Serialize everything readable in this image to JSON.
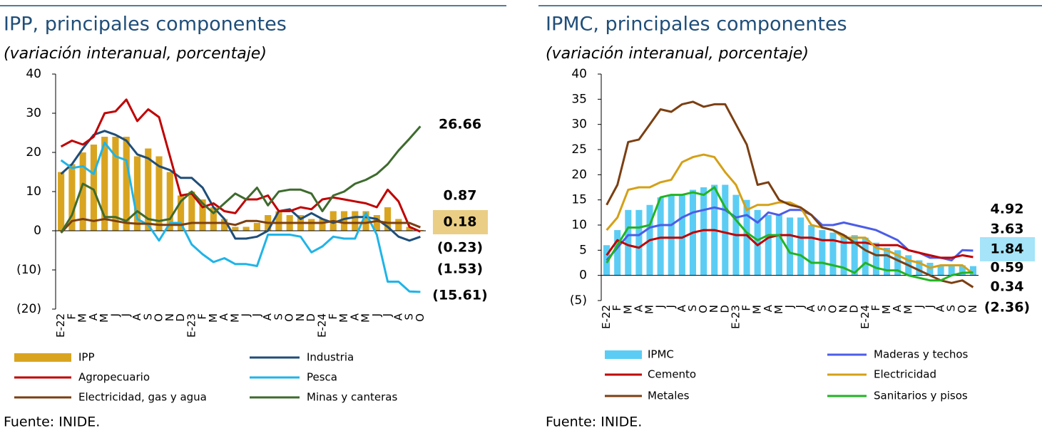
{
  "chart_data": [
    {
      "type": "combo",
      "title": "IPP, principales componentes",
      "subtitle": "(variación interanual, porcentaje)",
      "source": "Fuente: INIDE.",
      "categories": [
        "E-22",
        "F",
        "M",
        "A",
        "M",
        "J",
        "J",
        "A",
        "S",
        "O",
        "N",
        "D",
        "E-23",
        "F",
        "M",
        "A",
        "M",
        "J",
        "J",
        "A",
        "S",
        "O",
        "N",
        "D",
        "E-24",
        "F",
        "M",
        "A",
        "M",
        "J",
        "J",
        "A",
        "S",
        "O"
      ],
      "ylim": [
        -20,
        40
      ],
      "yticks": [
        {
          "value": -20,
          "label": "(20)"
        },
        {
          "value": -10,
          "label": "(10)"
        },
        0,
        10,
        20,
        30,
        40
      ],
      "series": [
        {
          "name": "IPP",
          "kind": "bar",
          "color": "#d9a520",
          "last_label": "0.18",
          "values": [
            15,
            17,
            20,
            22,
            24,
            24,
            24,
            19,
            21,
            19,
            15,
            9,
            10,
            8,
            6,
            3,
            1,
            1,
            2,
            4,
            5,
            4,
            4,
            3,
            3,
            5,
            5,
            5,
            5,
            4,
            6,
            3,
            1,
            0.18
          ]
        },
        {
          "name": "Industria",
          "kind": "line",
          "color": "#1f4e79",
          "last_label": "(1.53)",
          "values": [
            14.5,
            17,
            21,
            24.5,
            25.5,
            24.5,
            23,
            19.5,
            18.5,
            16.5,
            15.5,
            13.5,
            13.5,
            11,
            6,
            3,
            -2,
            -2,
            -1.5,
            0,
            5,
            5.5,
            3,
            4.5,
            3,
            2,
            3,
            3.5,
            3.5,
            3,
            1,
            -1.5,
            -2.5,
            -1.53
          ]
        },
        {
          "name": "Agropecuario",
          "kind": "line",
          "color": "#c00000",
          "last_label": "(0.23)",
          "values": [
            21.5,
            23,
            22,
            24,
            30,
            30.5,
            33.5,
            28,
            31,
            29,
            19,
            9,
            9.5,
            6,
            7,
            5,
            4.5,
            8,
            8,
            9,
            5,
            5,
            6,
            5.5,
            8,
            8.5,
            8,
            7.5,
            7,
            6,
            10.5,
            7.5,
            1,
            -0.23
          ]
        },
        {
          "name": "Pesca",
          "kind": "line",
          "color": "#1fb4e8",
          "last_label": "(15.61)",
          "values": [
            18,
            16,
            16.5,
            14.5,
            22.5,
            19,
            18,
            3,
            1.5,
            -2.5,
            2,
            2,
            -3.5,
            -6,
            -8,
            -7,
            -8.5,
            -8.5,
            -9,
            -1,
            -1,
            -1,
            -1.5,
            -5.5,
            -4,
            -1.5,
            -2,
            -2,
            4.5,
            -1,
            -13,
            -13,
            -15.5,
            -15.61
          ]
        },
        {
          "name": "Electricidad, gas y agua",
          "kind": "line",
          "color": "#7b3f12",
          "last_label": "0.87",
          "values": [
            -0.5,
            2.5,
            3,
            2.5,
            3,
            2.5,
            2,
            1.8,
            1.8,
            1.5,
            1.5,
            1.5,
            2,
            2,
            2,
            2,
            1.5,
            2.5,
            2.5,
            2,
            2,
            2,
            2,
            2,
            2,
            2.5,
            2,
            2,
            2,
            2.5,
            2,
            2,
            2,
            0.87
          ]
        },
        {
          "name": "Minas y canteras",
          "kind": "line",
          "color": "#3e6b2e",
          "last_label": "26.66",
          "values": [
            -0.5,
            4,
            12,
            10.5,
            3.5,
            3.5,
            2.5,
            5,
            3,
            2.5,
            3,
            7.5,
            10,
            7,
            4.5,
            7,
            9.5,
            8,
            11,
            6.5,
            10,
            10.5,
            10.5,
            9.5,
            5,
            9,
            10,
            12,
            13,
            14.5,
            17,
            20.5,
            23.5,
            26.66
          ]
        }
      ]
    },
    {
      "type": "combo",
      "title": "IPMC, principales componentes",
      "subtitle": "(variación interanual, porcentaje)",
      "source": "Fuente: INIDE.",
      "categories": [
        "E-22",
        "F",
        "M",
        "A",
        "M",
        "J",
        "J",
        "A",
        "S",
        "O",
        "N",
        "D",
        "E-23",
        "F",
        "M",
        "A",
        "M",
        "J",
        "J",
        "A",
        "S",
        "O",
        "N",
        "D",
        "E-24",
        "F",
        "M",
        "A",
        "M",
        "J",
        "J",
        "A",
        "S",
        "O",
        "N"
      ],
      "ylim": [
        -5,
        40
      ],
      "yticks": [
        {
          "value": -5,
          "label": "(5)"
        },
        0,
        5,
        10,
        15,
        20,
        25,
        30,
        35,
        40
      ],
      "series": [
        {
          "name": "IPMC",
          "kind": "bar",
          "color": "#5bcdf4",
          "last_label": "1.84",
          "values": [
            6,
            9,
            13,
            13,
            14,
            15.5,
            16,
            16,
            17,
            17.5,
            18,
            18,
            16,
            15,
            13,
            12,
            12,
            11.5,
            11.5,
            10,
            9,
            8.5,
            8,
            8,
            7.5,
            6.5,
            5.5,
            5,
            4,
            3,
            2.5,
            2,
            2,
            2,
            1.84
          ]
        },
        {
          "name": "Maderas y techos",
          "kind": "line",
          "color": "#4b5de8",
          "last_label": "4.92",
          "values": [
            3,
            5.5,
            8,
            8,
            9.5,
            10,
            10,
            11.5,
            12.5,
            13,
            13.5,
            13,
            11.5,
            12,
            10.5,
            12.5,
            12,
            13,
            13,
            12,
            10,
            10,
            10.5,
            10,
            9.5,
            9,
            8,
            7,
            5,
            4.5,
            3.5,
            3.5,
            3,
            5,
            4.92
          ]
        },
        {
          "name": "Cemento",
          "kind": "line",
          "color": "#c00000",
          "last_label": "3.63",
          "values": [
            4,
            7,
            6,
            5.5,
            7,
            7.5,
            7.5,
            7.5,
            8.5,
            9,
            9,
            8.5,
            8,
            8,
            6,
            7.5,
            8,
            8,
            7.5,
            7.5,
            7,
            7,
            6.5,
            6.5,
            6.5,
            6,
            6,
            6,
            5,
            4.5,
            4,
            3.5,
            3.5,
            4,
            3.63
          ]
        },
        {
          "name": "Electricidad",
          "kind": "line",
          "color": "#d4a017",
          "last_label": "0.34",
          "values": [
            9,
            11.5,
            17,
            17.5,
            17.5,
            18.5,
            19,
            22.5,
            23.5,
            24,
            23.5,
            20.5,
            18,
            13,
            14,
            14,
            14.5,
            14.5,
            13.5,
            10,
            9.5,
            9,
            7.5,
            7.5,
            7.5,
            5.5,
            5,
            4,
            3,
            2.5,
            1.5,
            2,
            2,
            2,
            0.34
          ]
        },
        {
          "name": "Metales",
          "kind": "line",
          "color": "#7b3f12",
          "last_label": "(2.36)",
          "values": [
            14,
            18,
            26.5,
            27,
            30,
            33,
            32.5,
            34,
            34.5,
            33.5,
            34,
            34,
            30,
            26,
            18,
            18.5,
            15,
            14,
            13.5,
            12,
            9.5,
            9,
            8,
            6.5,
            5,
            4,
            4,
            3,
            2,
            1,
            0,
            -1,
            -1.5,
            -1,
            -2.36
          ]
        },
        {
          "name": "Sanitarios y pisos",
          "kind": "line",
          "color": "#22b422",
          "last_label": "0.59",
          "values": [
            2.5,
            6,
            9.5,
            9.5,
            10,
            15.5,
            16,
            16,
            16.5,
            16,
            17.5,
            13.5,
            11,
            8.5,
            7,
            8,
            8,
            4.5,
            4,
            2.5,
            2.5,
            2,
            1.5,
            0.5,
            2.5,
            1.5,
            1,
            1,
            0,
            -0.5,
            -1,
            -1,
            0,
            0.5,
            0.59
          ]
        }
      ]
    }
  ]
}
